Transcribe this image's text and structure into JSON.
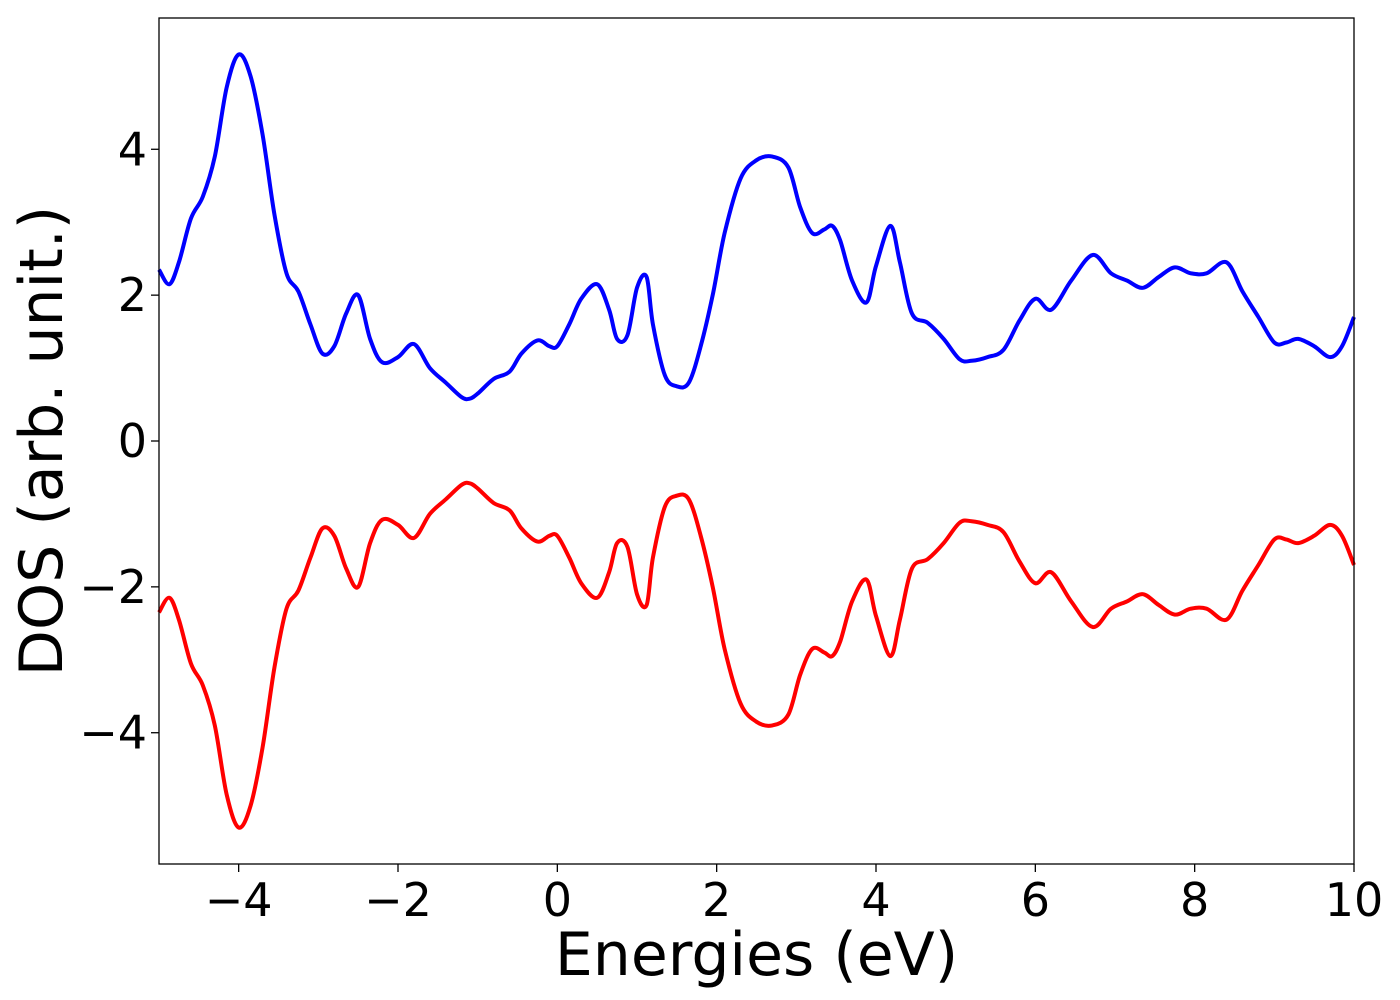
{
  "chart_data": {
    "type": "line",
    "title": "",
    "xlabel": "Energies (eV)",
    "ylabel": "DOS (arb. unit.)",
    "xlim": [
      -5,
      10
    ],
    "ylim": [
      -5.8,
      5.8
    ],
    "grid": false,
    "legend": "none",
    "x_ticks": [
      -4,
      -2,
      0,
      2,
      4,
      6,
      8,
      10
    ],
    "x_tick_labels": [
      "−4",
      "−2",
      "0",
      "2",
      "4",
      "6",
      "8",
      "10"
    ],
    "y_ticks": [
      -4,
      -2,
      0,
      2,
      4
    ],
    "y_tick_labels": [
      "−4",
      "−2",
      "0",
      "2",
      "4"
    ],
    "series": [
      {
        "color": "#0000ff",
        "x": [
          -5.0,
          -4.87,
          -4.75,
          -4.6,
          -4.45,
          -4.3,
          -4.15,
          -4.0,
          -3.85,
          -3.7,
          -3.55,
          -3.4,
          -3.25,
          -3.1,
          -2.95,
          -2.8,
          -2.65,
          -2.5,
          -2.35,
          -2.2,
          -2.0,
          -1.8,
          -1.6,
          -1.4,
          -1.2,
          -1.1,
          -1.0,
          -0.8,
          -0.6,
          -0.45,
          -0.25,
          -0.1,
          0.0,
          0.15,
          0.3,
          0.5,
          0.65,
          0.75,
          0.88,
          1.0,
          1.12,
          1.2,
          1.35,
          1.5,
          1.65,
          1.8,
          1.95,
          2.1,
          2.3,
          2.5,
          2.7,
          2.9,
          3.05,
          3.2,
          3.35,
          3.45,
          3.55,
          3.7,
          3.88,
          4.0,
          4.18,
          4.3,
          4.45,
          4.65,
          4.85,
          5.05,
          5.2,
          5.4,
          5.6,
          5.8,
          6.0,
          6.2,
          6.45,
          6.72,
          6.95,
          7.15,
          7.35,
          7.55,
          7.75,
          7.95,
          8.15,
          8.4,
          8.6,
          8.8,
          9.0,
          9.15,
          9.3,
          9.5,
          9.7,
          9.85,
          10.0
        ],
        "y": [
          2.35,
          2.15,
          2.45,
          3.05,
          3.35,
          3.9,
          4.85,
          5.3,
          5.0,
          4.2,
          3.1,
          2.3,
          2.05,
          1.6,
          1.2,
          1.3,
          1.75,
          2.0,
          1.4,
          1.08,
          1.15,
          1.33,
          1.0,
          0.8,
          0.6,
          0.58,
          0.65,
          0.85,
          0.95,
          1.2,
          1.38,
          1.3,
          1.3,
          1.6,
          1.95,
          2.15,
          1.8,
          1.4,
          1.45,
          2.1,
          2.25,
          1.6,
          0.9,
          0.75,
          0.8,
          1.3,
          2.0,
          2.85,
          3.6,
          3.85,
          3.9,
          3.75,
          3.2,
          2.85,
          2.9,
          2.95,
          2.75,
          2.2,
          1.9,
          2.4,
          2.95,
          2.45,
          1.75,
          1.62,
          1.4,
          1.12,
          1.1,
          1.15,
          1.25,
          1.65,
          1.95,
          1.8,
          2.2,
          2.55,
          2.3,
          2.2,
          2.1,
          2.25,
          2.38,
          2.3,
          2.3,
          2.45,
          2.05,
          1.7,
          1.35,
          1.35,
          1.4,
          1.3,
          1.15,
          1.3,
          1.7
        ]
      },
      {
        "color": "#ff0000",
        "x": [
          -5.0,
          -4.87,
          -4.75,
          -4.6,
          -4.45,
          -4.3,
          -4.15,
          -4.0,
          -3.85,
          -3.7,
          -3.55,
          -3.4,
          -3.25,
          -3.1,
          -2.95,
          -2.8,
          -2.65,
          -2.5,
          -2.35,
          -2.2,
          -2.0,
          -1.8,
          -1.6,
          -1.4,
          -1.2,
          -1.1,
          -1.0,
          -0.8,
          -0.6,
          -0.45,
          -0.25,
          -0.1,
          0.0,
          0.15,
          0.3,
          0.5,
          0.65,
          0.75,
          0.88,
          1.0,
          1.12,
          1.2,
          1.35,
          1.5,
          1.65,
          1.8,
          1.95,
          2.1,
          2.3,
          2.5,
          2.7,
          2.9,
          3.05,
          3.2,
          3.35,
          3.45,
          3.55,
          3.7,
          3.88,
          4.0,
          4.18,
          4.3,
          4.45,
          4.65,
          4.85,
          5.05,
          5.2,
          5.4,
          5.6,
          5.8,
          6.0,
          6.2,
          6.45,
          6.72,
          6.95,
          7.15,
          7.35,
          7.55,
          7.75,
          7.95,
          8.15,
          8.4,
          8.6,
          8.8,
          9.0,
          9.15,
          9.3,
          9.5,
          9.7,
          9.85,
          10.0
        ],
        "y": [
          -2.35,
          -2.15,
          -2.45,
          -3.05,
          -3.35,
          -3.9,
          -4.85,
          -5.3,
          -5.0,
          -4.2,
          -3.1,
          -2.3,
          -2.05,
          -1.6,
          -1.2,
          -1.3,
          -1.75,
          -2.0,
          -1.4,
          -1.08,
          -1.15,
          -1.33,
          -1.0,
          -0.8,
          -0.6,
          -0.58,
          -0.65,
          -0.85,
          -0.95,
          -1.2,
          -1.38,
          -1.3,
          -1.3,
          -1.6,
          -1.95,
          -2.15,
          -1.8,
          -1.4,
          -1.45,
          -2.1,
          -2.25,
          -1.6,
          -0.9,
          -0.75,
          -0.8,
          -1.3,
          -2.0,
          -2.85,
          -3.6,
          -3.85,
          -3.9,
          -3.75,
          -3.2,
          -2.85,
          -2.9,
          -2.95,
          -2.75,
          -2.2,
          -1.9,
          -2.4,
          -2.95,
          -2.45,
          -1.75,
          -1.62,
          -1.4,
          -1.12,
          -1.1,
          -1.15,
          -1.25,
          -1.65,
          -1.95,
          -1.8,
          -2.2,
          -2.55,
          -2.3,
          -2.2,
          -2.1,
          -2.25,
          -2.38,
          -2.3,
          -2.3,
          -2.45,
          -2.05,
          -1.7,
          -1.35,
          -1.35,
          -1.4,
          -1.3,
          -1.15,
          -1.3,
          -1.7
        ]
      }
    ]
  }
}
